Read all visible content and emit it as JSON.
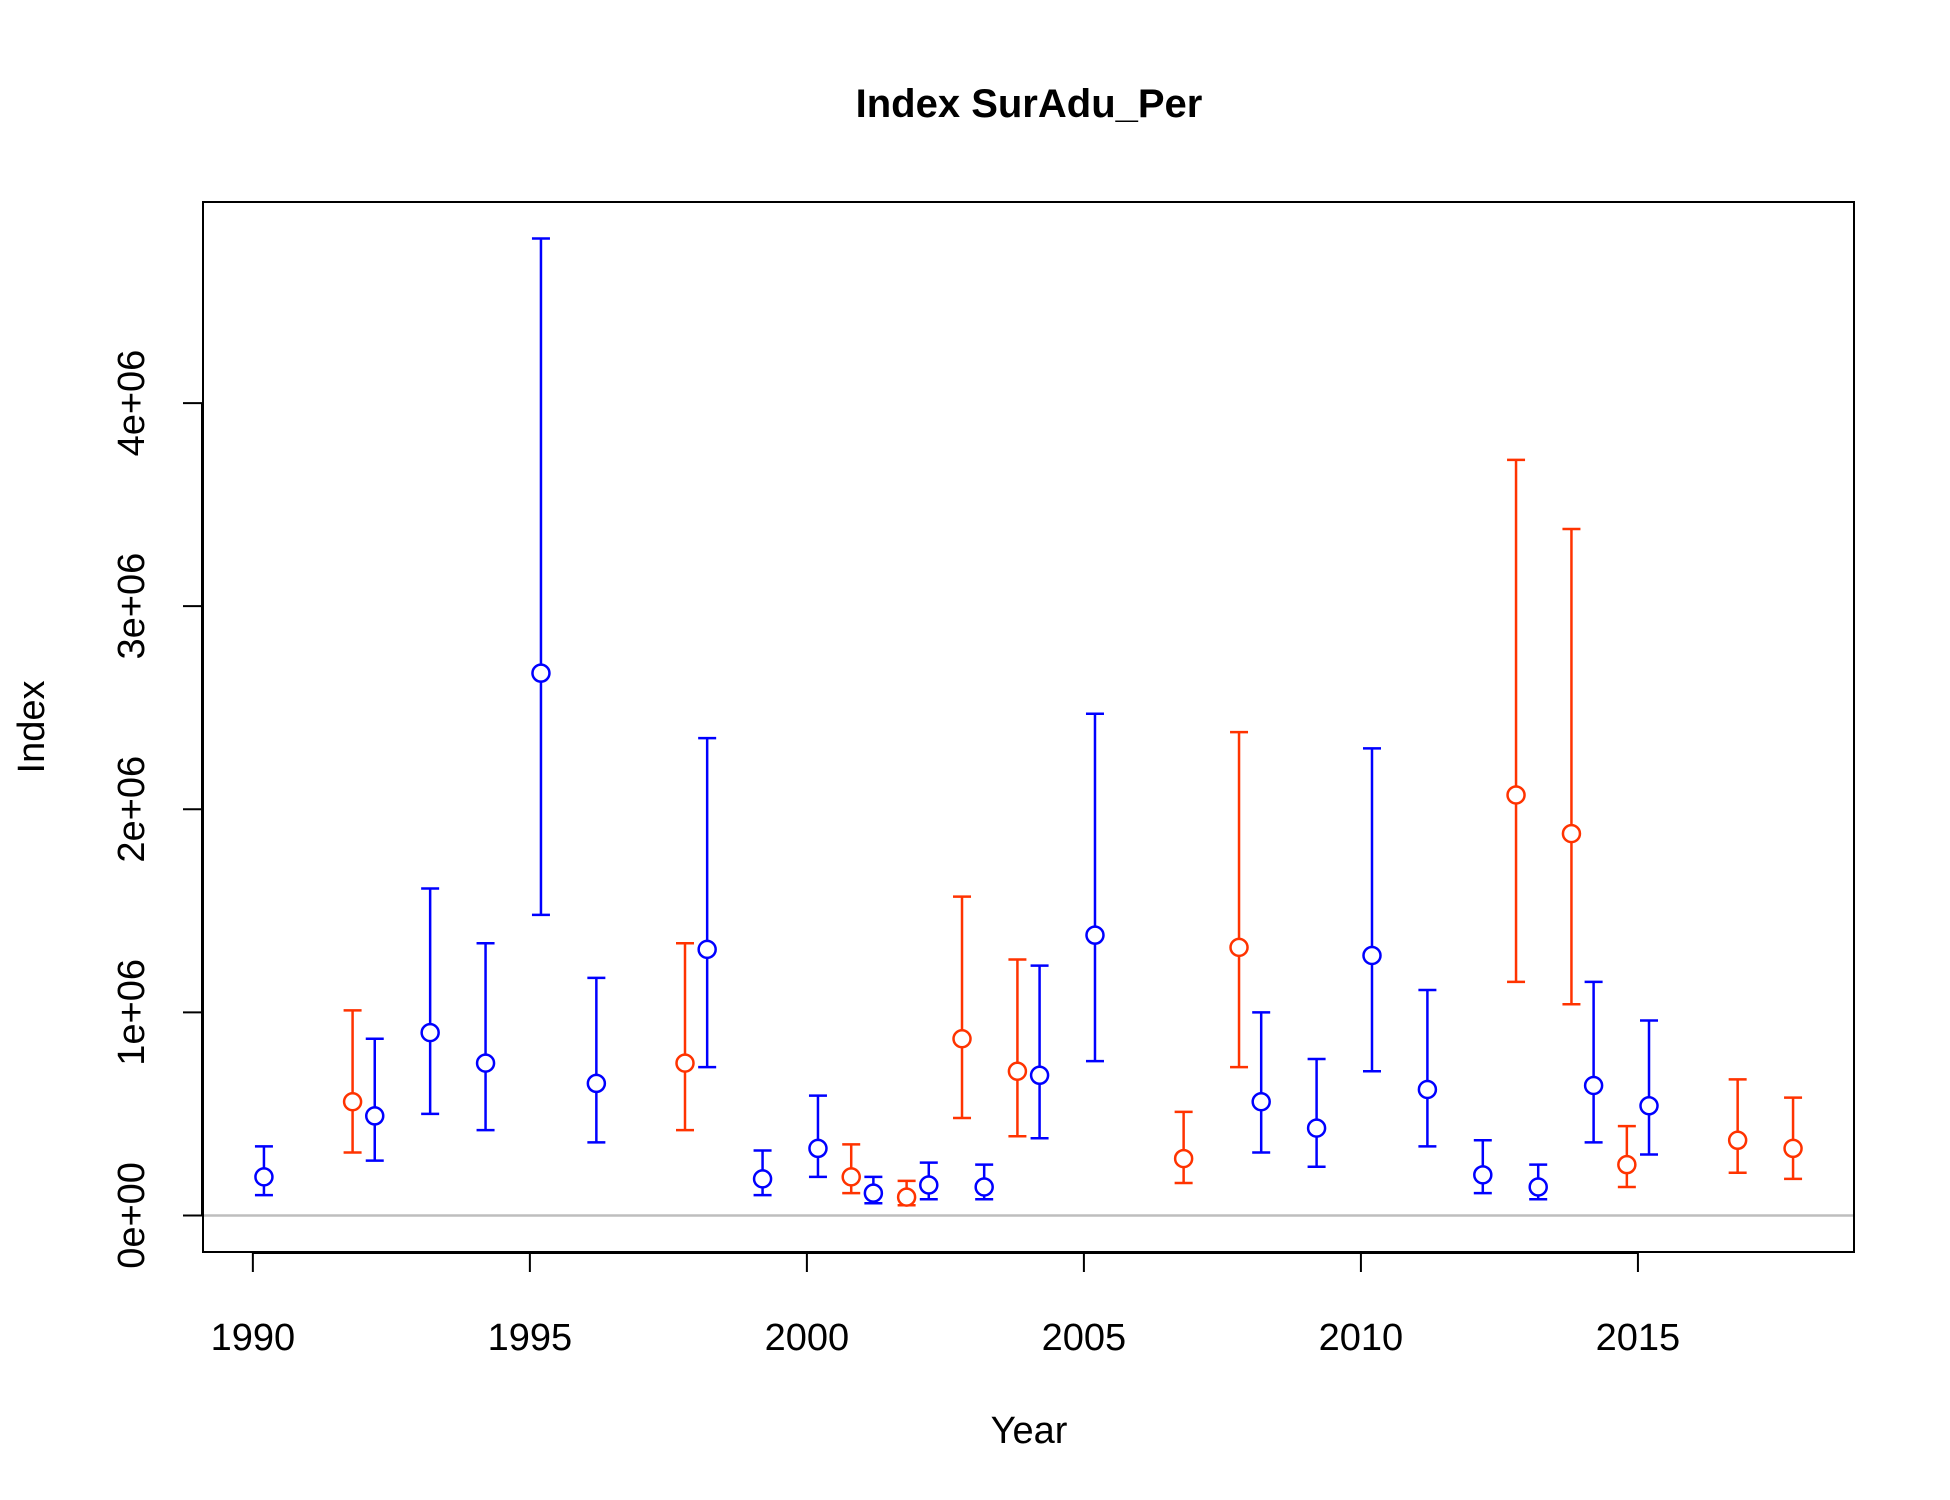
{
  "chart_data": {
    "type": "scatter",
    "title": "Index SurAdu_Per",
    "xlabel": "Year",
    "ylabel": "Index",
    "xlim": [
      1989.1,
      2018.9
    ],
    "ylim": [
      -180000,
      4990000
    ],
    "x_ticks": [
      1990,
      1995,
      2000,
      2005,
      2010,
      2015
    ],
    "x_tick_labels": [
      "1990",
      "1995",
      "2000",
      "2005",
      "2010",
      "2015"
    ],
    "y_ticks": [
      0,
      1000000,
      2000000,
      3000000,
      4000000
    ],
    "y_tick_labels": [
      "0e+00",
      "1e+06",
      "2e+06",
      "3e+06",
      "4e+06"
    ],
    "reference_line": 0,
    "colors": {
      "blue": "#0000ff",
      "red": "#ff3300",
      "reference": "#bebebe"
    },
    "series": [
      {
        "color": "blue",
        "points": [
          {
            "x": 1990.2,
            "y": 190000,
            "lower": 100000,
            "upper": 340000
          },
          {
            "x": 1992.2,
            "y": 490000,
            "lower": 270000,
            "upper": 870000
          },
          {
            "x": 1993.2,
            "y": 900000,
            "lower": 500000,
            "upper": 1610000
          },
          {
            "x": 1994.2,
            "y": 750000,
            "lower": 420000,
            "upper": 1340000
          },
          {
            "x": 1995.2,
            "y": 2670000,
            "lower": 1480000,
            "upper": 4810000
          },
          {
            "x": 1996.2,
            "y": 650000,
            "lower": 360000,
            "upper": 1170000
          },
          {
            "x": 1998.2,
            "y": 1310000,
            "lower": 730000,
            "upper": 2350000
          },
          {
            "x": 1999.2,
            "y": 180000,
            "lower": 100000,
            "upper": 320000
          },
          {
            "x": 2000.2,
            "y": 330000,
            "lower": 190000,
            "upper": 590000
          },
          {
            "x": 2001.2,
            "y": 110000,
            "lower": 60000,
            "upper": 190000
          },
          {
            "x": 2002.2,
            "y": 150000,
            "lower": 80000,
            "upper": 260000
          },
          {
            "x": 2003.2,
            "y": 140000,
            "lower": 80000,
            "upper": 250000
          },
          {
            "x": 2004.2,
            "y": 690000,
            "lower": 380000,
            "upper": 1230000
          },
          {
            "x": 2005.2,
            "y": 1380000,
            "lower": 760000,
            "upper": 2470000
          },
          {
            "x": 2008.2,
            "y": 560000,
            "lower": 310000,
            "upper": 1000000
          },
          {
            "x": 2009.2,
            "y": 430000,
            "lower": 240000,
            "upper": 770000
          },
          {
            "x": 2010.2,
            "y": 1280000,
            "lower": 710000,
            "upper": 2300000
          },
          {
            "x": 2011.2,
            "y": 620000,
            "lower": 340000,
            "upper": 1110000
          },
          {
            "x": 2012.2,
            "y": 200000,
            "lower": 110000,
            "upper": 370000
          },
          {
            "x": 2013.2,
            "y": 140000,
            "lower": 80000,
            "upper": 250000
          },
          {
            "x": 2014.2,
            "y": 640000,
            "lower": 360000,
            "upper": 1150000
          },
          {
            "x": 2015.2,
            "y": 540000,
            "lower": 300000,
            "upper": 960000
          }
        ]
      },
      {
        "color": "red",
        "points": [
          {
            "x": 1991.8,
            "y": 560000,
            "lower": 310000,
            "upper": 1010000
          },
          {
            "x": 1997.8,
            "y": 750000,
            "lower": 420000,
            "upper": 1340000
          },
          {
            "x": 2000.8,
            "y": 190000,
            "lower": 110000,
            "upper": 350000
          },
          {
            "x": 2001.8,
            "y": 90000,
            "lower": 50000,
            "upper": 170000
          },
          {
            "x": 2002.8,
            "y": 870000,
            "lower": 480000,
            "upper": 1570000
          },
          {
            "x": 2003.8,
            "y": 710000,
            "lower": 390000,
            "upper": 1260000
          },
          {
            "x": 2006.8,
            "y": 280000,
            "lower": 160000,
            "upper": 510000
          },
          {
            "x": 2007.8,
            "y": 1320000,
            "lower": 730000,
            "upper": 2380000
          },
          {
            "x": 2012.8,
            "y": 2070000,
            "lower": 1150000,
            "upper": 3720000
          },
          {
            "x": 2013.8,
            "y": 1880000,
            "lower": 1040000,
            "upper": 3380000
          },
          {
            "x": 2014.8,
            "y": 250000,
            "lower": 140000,
            "upper": 440000
          },
          {
            "x": 2016.8,
            "y": 370000,
            "lower": 210000,
            "upper": 670000
          },
          {
            "x": 2017.8,
            "y": 330000,
            "lower": 180000,
            "upper": 580000
          }
        ]
      }
    ]
  }
}
